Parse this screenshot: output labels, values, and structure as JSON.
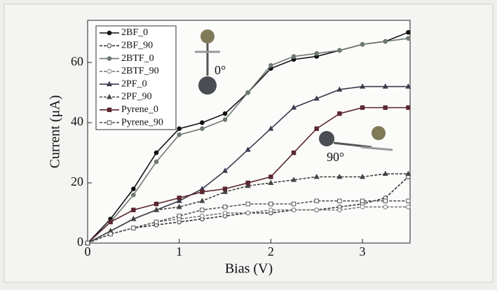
{
  "chart_data": {
    "type": "line",
    "x_label": "Bias (V)",
    "y_label": "Current (μA)",
    "x": [
      0,
      0.25,
      0.5,
      0.75,
      1,
      1.25,
      1.5,
      1.75,
      2,
      2.25,
      2.5,
      2.75,
      3,
      3.25,
      3.5
    ],
    "xlim": [
      0,
      3.52
    ],
    "ylim": [
      0,
      74
    ],
    "xticks": [
      0,
      1,
      2,
      3
    ],
    "yticks": [
      0,
      20,
      40,
      60
    ],
    "annotations": [
      "0°",
      "90°"
    ],
    "series": [
      {
        "name": "2BF_0",
        "color": "#111111",
        "marker": "circle",
        "filled": true,
        "dashed": false,
        "values": [
          0,
          8,
          18,
          30,
          38,
          40,
          43,
          50,
          58,
          61,
          62,
          64,
          66,
          67,
          70
        ]
      },
      {
        "name": "2BF_90",
        "color": "#333333",
        "marker": "circle",
        "filled": false,
        "dashed": true,
        "values": [
          0,
          3,
          5,
          6,
          7,
          8,
          9,
          10,
          10,
          11,
          11,
          12,
          13,
          15,
          22
        ]
      },
      {
        "name": "2BTF_0",
        "color": "#6e7a72",
        "marker": "circle",
        "filled": true,
        "dashed": false,
        "values": [
          0,
          7,
          16,
          27,
          36,
          38,
          41,
          50,
          59,
          62,
          63,
          64,
          66,
          67,
          68
        ]
      },
      {
        "name": "2BTF_90",
        "color": "#777777",
        "marker": "circle",
        "filled": false,
        "dashed": true,
        "values": [
          0,
          3,
          5,
          7,
          8,
          9,
          10,
          10,
          11,
          11,
          11,
          11,
          12,
          12,
          12
        ]
      },
      {
        "name": "2PF_0",
        "color": "#3c3a4c",
        "marker": "triangle",
        "filled": true,
        "dashed": false,
        "values": [
          0,
          4,
          8,
          11,
          14,
          18,
          24,
          31,
          38,
          45,
          48,
          51,
          52,
          52,
          52
        ]
      },
      {
        "name": "2PF_90",
        "color": "#444444",
        "marker": "triangle",
        "filled": true,
        "dashed": true,
        "values": [
          0,
          4,
          8,
          11,
          12,
          14,
          17,
          19,
          20,
          21,
          22,
          22,
          22,
          23,
          23
        ]
      },
      {
        "name": "Pyrene_0",
        "color": "#5a2630",
        "marker": "square",
        "filled": true,
        "dashed": false,
        "values": [
          0,
          7,
          11,
          13,
          15,
          17,
          18,
          20,
          22,
          30,
          38,
          43,
          45,
          45,
          45
        ]
      },
      {
        "name": "Pyrene_90",
        "color": "#555555",
        "marker": "square",
        "filled": false,
        "dashed": true,
        "values": [
          0,
          3,
          5,
          7,
          9,
          11,
          12,
          13,
          13,
          13,
          14,
          14,
          14,
          14,
          14
        ]
      }
    ]
  }
}
